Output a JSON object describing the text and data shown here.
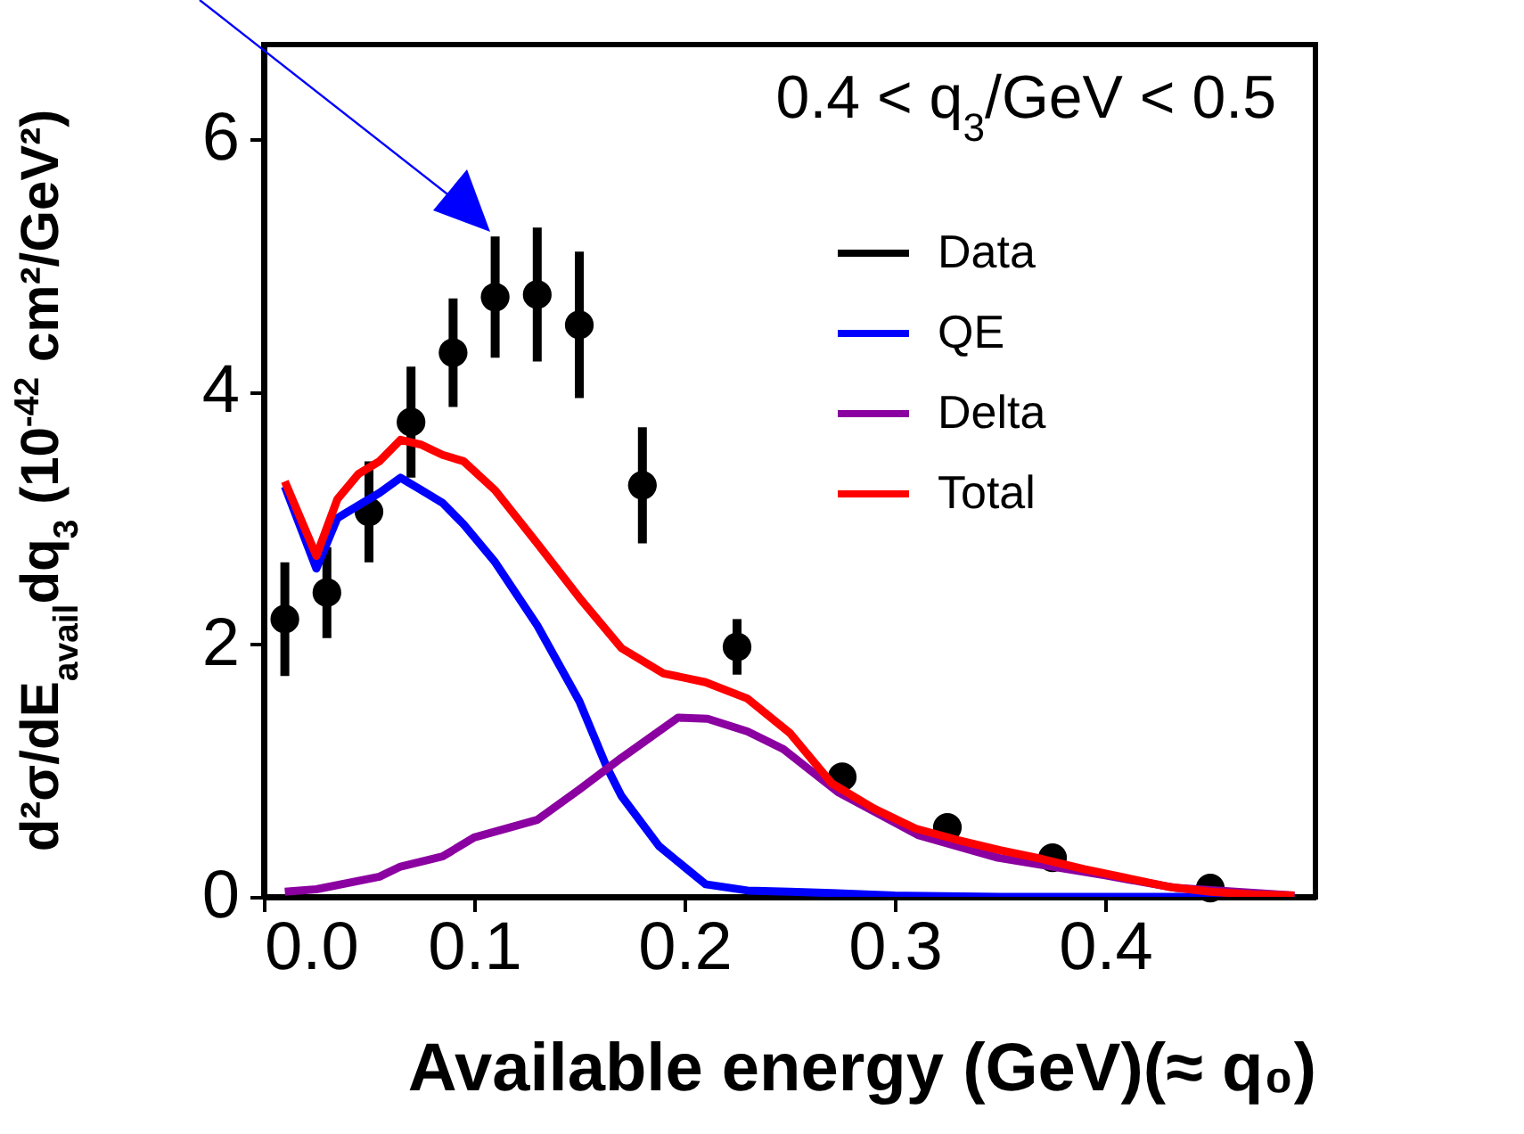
{
  "chart_data": {
    "type": "line",
    "xlabel": "Available energy (GeV)(≈ q₀)",
    "ylabel": "d²σ/dE$_{avail}$dq$_{3}$ (10$^{-42}$ cm²/GeV²)",
    "annotations": [
      "0.4 < q$_{3}$/GeV < 0.5"
    ],
    "xlim": [
      0,
      0.5
    ],
    "xticks": [
      {
        "value": 0,
        "label": "0.0"
      },
      0.1,
      0.2,
      0.3,
      0.4
    ],
    "ylim": [
      0,
      6.75
    ],
    "yticks": [
      0,
      2,
      4,
      6
    ],
    "grid": false,
    "legend": "top right",
    "series": [
      {
        "name": "Data",
        "type": "scatter",
        "marker": "circle",
        "color": "#000000",
        "x": [
          0.01,
          0.03,
          0.05,
          0.07,
          0.09,
          0.11,
          0.13,
          0.15,
          0.18,
          0.225,
          0.275,
          0.325,
          0.375,
          0.45
        ],
        "values": [
          2.2,
          2.41,
          3.05,
          3.76,
          4.31,
          4.75,
          4.77,
          4.53,
          3.26,
          1.98,
          0.95,
          0.55,
          0.31,
          0.07
        ],
        "errors": [
          0.45,
          0.36,
          0.4,
          0.44,
          0.43,
          0.48,
          0.53,
          0.58,
          0.46,
          0.22,
          null,
          null,
          null,
          null
        ]
      },
      {
        "name": "QE",
        "type": "line",
        "line_style": "solid",
        "color": "#0000ff",
        "x": [
          0.01,
          0.025,
          0.035,
          0.045,
          0.055,
          0.065,
          0.075,
          0.085,
          0.095,
          0.11,
          0.13,
          0.15,
          0.163,
          0.17,
          0.188,
          0.21,
          0.23,
          0.25,
          0.27,
          0.3,
          0.35,
          0.49
        ],
        "values": [
          3.25,
          2.6,
          3.0,
          3.1,
          3.2,
          3.32,
          3.22,
          3.12,
          2.95,
          2.65,
          2.15,
          1.55,
          1.03,
          0.8,
          0.4,
          0.1,
          0.05,
          0.04,
          0.03,
          0.01,
          0,
          0
        ]
      },
      {
        "name": "Delta",
        "type": "line",
        "line_style": "solid",
        "color": "#8b00a0",
        "x": [
          0.01,
          0.025,
          0.055,
          0.065,
          0.085,
          0.1,
          0.13,
          0.15,
          0.17,
          0.197,
          0.211,
          0.23,
          0.247,
          0.273,
          0.311,
          0.349,
          0.4,
          0.434,
          0.49
        ],
        "values": [
          0.04,
          0.06,
          0.16,
          0.24,
          0.32,
          0.47,
          0.61,
          0.85,
          1.1,
          1.42,
          1.41,
          1.31,
          1.17,
          0.83,
          0.49,
          0.31,
          0.17,
          0.07,
          0.01
        ]
      },
      {
        "name": "Total",
        "type": "line",
        "line_style": "solid",
        "color": "#ff0000",
        "x": [
          0.01,
          0.025,
          0.035,
          0.045,
          0.055,
          0.065,
          0.075,
          0.085,
          0.095,
          0.11,
          0.13,
          0.15,
          0.17,
          0.19,
          0.21,
          0.23,
          0.25,
          0.27,
          0.29,
          0.31,
          0.33,
          0.35,
          0.37,
          0.39,
          0.41,
          0.43,
          0.45,
          0.47,
          0.49
        ],
        "values": [
          3.29,
          2.7,
          3.15,
          3.35,
          3.45,
          3.62,
          3.58,
          3.5,
          3.45,
          3.22,
          2.8,
          2.37,
          1.97,
          1.77,
          1.7,
          1.57,
          1.3,
          0.9,
          0.7,
          0.54,
          0.45,
          0.37,
          0.3,
          0.22,
          0.15,
          0.08,
          0.04,
          0.02,
          0.01
        ]
      }
    ]
  }
}
